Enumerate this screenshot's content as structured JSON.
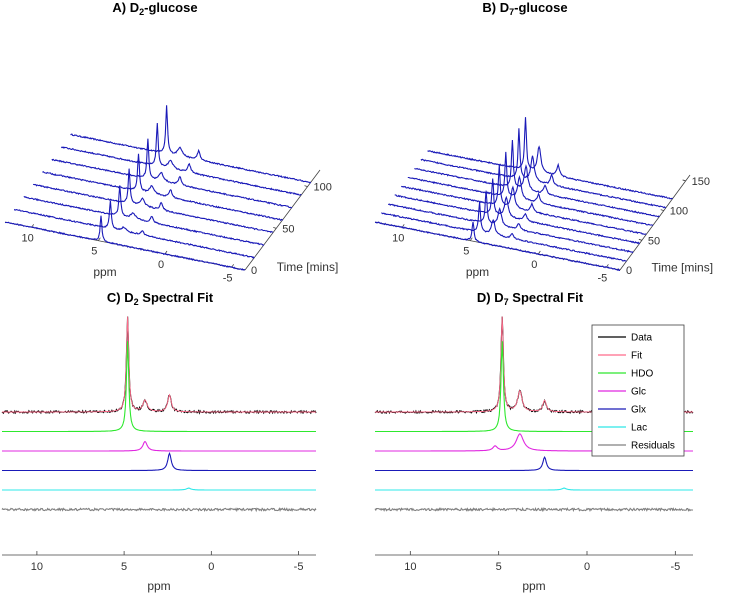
{
  "colors": {
    "waterfall": "#1a1ab8",
    "axis": "#404040",
    "data": "#000000",
    "fit": "#ff6b8a",
    "hdo": "#2ee82e",
    "glc": "#e028e0",
    "glx": "#1a1ab8",
    "lac": "#2ee8e8",
    "residuals": "#808080"
  },
  "chart_data": [
    {
      "type": "line",
      "style": "waterfall",
      "title": "A) D2-glucose",
      "title_main": "A) D",
      "title_sub": "2",
      "title_rest": "-glucose",
      "xlabel": "ppm",
      "ylabel": "Time [mins]",
      "x_ticks": [
        "10",
        "5",
        "0",
        "-5"
      ],
      "x_tick_values": [
        10,
        5,
        0,
        -5
      ],
      "xlim": [
        12,
        -6
      ],
      "y_ticks": [
        "0",
        "50",
        "100"
      ],
      "y_tick_values": [
        0,
        50,
        100
      ],
      "ylim": [
        0,
        120
      ],
      "series": [
        {
          "time": 0,
          "peaks": [
            {
              "ppm": 4.8,
              "height": 0.5,
              "width": 0.08
            }
          ]
        },
        {
          "time": 15,
          "peaks": [
            {
              "ppm": 4.8,
              "height": 0.55,
              "width": 0.08
            },
            {
              "ppm": 3.8,
              "height": 0.08,
              "width": 0.2
            },
            {
              "ppm": 2.4,
              "height": 0.09,
              "width": 0.12
            }
          ]
        },
        {
          "time": 30,
          "peaks": [
            {
              "ppm": 4.8,
              "height": 0.62,
              "width": 0.08
            },
            {
              "ppm": 3.8,
              "height": 0.12,
              "width": 0.2
            },
            {
              "ppm": 2.4,
              "height": 0.12,
              "width": 0.12
            }
          ]
        },
        {
          "time": 45,
          "peaks": [
            {
              "ppm": 4.8,
              "height": 0.7,
              "width": 0.08
            },
            {
              "ppm": 3.8,
              "height": 0.15,
              "width": 0.2
            },
            {
              "ppm": 2.4,
              "height": 0.15,
              "width": 0.12
            }
          ]
        },
        {
          "time": 60,
          "peaks": [
            {
              "ppm": 4.8,
              "height": 0.75,
              "width": 0.08
            },
            {
              "ppm": 3.8,
              "height": 0.16,
              "width": 0.2
            },
            {
              "ppm": 2.4,
              "height": 0.16,
              "width": 0.12
            }
          ]
        },
        {
          "time": 75,
          "peaks": [
            {
              "ppm": 4.8,
              "height": 0.8,
              "width": 0.08
            },
            {
              "ppm": 3.8,
              "height": 0.17,
              "width": 0.2
            },
            {
              "ppm": 2.4,
              "height": 0.17,
              "width": 0.12
            }
          ]
        },
        {
          "time": 90,
          "peaks": [
            {
              "ppm": 4.8,
              "height": 0.86,
              "width": 0.08
            },
            {
              "ppm": 3.8,
              "height": 0.17,
              "width": 0.2
            },
            {
              "ppm": 2.4,
              "height": 0.17,
              "width": 0.12
            }
          ]
        },
        {
          "time": 105,
          "peaks": [
            {
              "ppm": 4.8,
              "height": 0.95,
              "width": 0.08
            },
            {
              "ppm": 3.8,
              "height": 0.18,
              "width": 0.2
            },
            {
              "ppm": 2.4,
              "height": 0.18,
              "width": 0.12
            }
          ]
        }
      ]
    },
    {
      "type": "line",
      "style": "waterfall",
      "title": "B) D7-glucose",
      "title_main": "B) D",
      "title_sub": "7",
      "title_rest": "-glucose",
      "xlabel": "ppm",
      "ylabel": "Time [mins]",
      "x_ticks": [
        "10",
        "5",
        "0",
        "-5"
      ],
      "x_tick_values": [
        10,
        5,
        0,
        -5
      ],
      "xlim": [
        12,
        -6
      ],
      "y_ticks": [
        "0",
        "50",
        "100",
        "150"
      ],
      "y_tick_values": [
        0,
        50,
        100,
        150
      ],
      "ylim": [
        0,
        160
      ],
      "series": [
        {
          "time": 0,
          "peaks": [
            {
              "ppm": 4.8,
              "height": 0.4,
              "width": 0.08
            }
          ]
        },
        {
          "time": 15,
          "peaks": [
            {
              "ppm": 4.8,
              "height": 0.6,
              "width": 0.08
            },
            {
              "ppm": 3.8,
              "height": 0.3,
              "width": 0.15
            },
            {
              "ppm": 2.4,
              "height": 0.1,
              "width": 0.12
            }
          ]
        },
        {
          "time": 30,
          "peaks": [
            {
              "ppm": 4.8,
              "height": 0.65,
              "width": 0.08
            },
            {
              "ppm": 3.8,
              "height": 0.35,
              "width": 0.15
            },
            {
              "ppm": 2.4,
              "height": 0.12,
              "width": 0.12
            }
          ]
        },
        {
          "time": 45,
          "peaks": [
            {
              "ppm": 4.8,
              "height": 0.72,
              "width": 0.08
            },
            {
              "ppm": 3.8,
              "height": 0.4,
              "width": 0.15
            },
            {
              "ppm": 2.4,
              "height": 0.14,
              "width": 0.12
            }
          ]
        },
        {
          "time": 60,
          "peaks": [
            {
              "ppm": 4.8,
              "height": 0.8,
              "width": 0.08
            },
            {
              "ppm": 3.8,
              "height": 0.42,
              "width": 0.15
            },
            {
              "ppm": 2.4,
              "height": 0.16,
              "width": 0.12
            }
          ]
        },
        {
          "time": 75,
          "peaks": [
            {
              "ppm": 4.8,
              "height": 0.88,
              "width": 0.08
            },
            {
              "ppm": 3.8,
              "height": 0.45,
              "width": 0.15
            },
            {
              "ppm": 2.4,
              "height": 0.17,
              "width": 0.12
            }
          ]
        },
        {
          "time": 90,
          "peaks": [
            {
              "ppm": 4.8,
              "height": 0.95,
              "width": 0.08
            },
            {
              "ppm": 3.8,
              "height": 0.48,
              "width": 0.15
            },
            {
              "ppm": 2.4,
              "height": 0.18,
              "width": 0.12
            }
          ]
        },
        {
          "time": 105,
          "peaks": [
            {
              "ppm": 4.8,
              "height": 1.0,
              "width": 0.08
            },
            {
              "ppm": 3.8,
              "height": 0.5,
              "width": 0.15
            },
            {
              "ppm": 2.4,
              "height": 0.2,
              "width": 0.12
            }
          ]
        },
        {
          "time": 120,
          "peaks": [
            {
              "ppm": 4.8,
              "height": 1.05,
              "width": 0.08
            },
            {
              "ppm": 3.8,
              "height": 0.52,
              "width": 0.15
            },
            {
              "ppm": 2.4,
              "height": 0.22,
              "width": 0.12
            }
          ]
        }
      ]
    },
    {
      "type": "line",
      "style": "stacked-fit",
      "title": "C) D2 Spectral Fit",
      "title_main": "C) D",
      "title_sub": "2",
      "title_rest": " Spectral Fit",
      "xlabel": "ppm",
      "x_ticks": [
        "10",
        "5",
        "0",
        "-5"
      ],
      "x_tick_values": [
        10,
        5,
        0,
        -5
      ],
      "xlim": [
        12,
        -6
      ],
      "series": [
        {
          "name": "Data",
          "color_key": "data",
          "offset": 0,
          "noise": 0.012,
          "peaks": [
            {
              "ppm": 4.8,
              "height": 1.0,
              "width": 0.08
            },
            {
              "ppm": 3.8,
              "height": 0.12,
              "width": 0.15
            },
            {
              "ppm": 2.4,
              "height": 0.18,
              "width": 0.12
            }
          ]
        },
        {
          "name": "Fit",
          "color_key": "fit",
          "offset": 0,
          "noise": 0,
          "peaks": [
            {
              "ppm": 4.8,
              "height": 1.0,
              "width": 0.08
            },
            {
              "ppm": 3.8,
              "height": 0.12,
              "width": 0.15
            },
            {
              "ppm": 2.4,
              "height": 0.18,
              "width": 0.12
            }
          ]
        },
        {
          "name": "HDO",
          "color_key": "hdo",
          "offset": 1,
          "noise": 0,
          "peaks": [
            {
              "ppm": 4.8,
              "height": 0.95,
              "width": 0.08
            }
          ]
        },
        {
          "name": "Glc",
          "color_key": "glc",
          "offset": 2,
          "noise": 0,
          "peaks": [
            {
              "ppm": 3.8,
              "height": 0.1,
              "width": 0.15
            }
          ]
        },
        {
          "name": "Glx",
          "color_key": "glx",
          "offset": 3,
          "noise": 0,
          "peaks": [
            {
              "ppm": 2.4,
              "height": 0.18,
              "width": 0.12
            }
          ]
        },
        {
          "name": "Lac",
          "color_key": "lac",
          "offset": 4,
          "noise": 0,
          "peaks": [
            {
              "ppm": 1.3,
              "height": 0.02,
              "width": 0.15
            }
          ]
        },
        {
          "name": "Residuals",
          "color_key": "residuals",
          "offset": 5,
          "noise": 0.012,
          "peaks": []
        }
      ]
    },
    {
      "type": "line",
      "style": "stacked-fit",
      "title": "D) D7 Spectral Fit",
      "title_main": "D) D",
      "title_sub": "7",
      "title_rest": " Spectral Fit",
      "xlabel": "ppm",
      "x_ticks": [
        "10",
        "5",
        "0",
        "-5"
      ],
      "x_tick_values": [
        10,
        5,
        0,
        -5
      ],
      "xlim": [
        12,
        -6
      ],
      "legend": {
        "placement": "top-right",
        "entries": [
          "Data",
          "Fit",
          "HDO",
          "Glc",
          "Glx",
          "Lac",
          "Residuals"
        ]
      },
      "series": [
        {
          "name": "Data",
          "color_key": "data",
          "offset": 0,
          "noise": 0.012,
          "peaks": [
            {
              "ppm": 4.8,
              "height": 1.0,
              "width": 0.08
            },
            {
              "ppm": 3.8,
              "height": 0.22,
              "width": 0.15
            },
            {
              "ppm": 2.4,
              "height": 0.12,
              "width": 0.12
            }
          ]
        },
        {
          "name": "Fit",
          "color_key": "fit",
          "offset": 0,
          "noise": 0,
          "peaks": [
            {
              "ppm": 4.8,
              "height": 1.0,
              "width": 0.08
            },
            {
              "ppm": 3.8,
              "height": 0.22,
              "width": 0.15
            },
            {
              "ppm": 2.4,
              "height": 0.12,
              "width": 0.12
            }
          ]
        },
        {
          "name": "HDO",
          "color_key": "hdo",
          "offset": 1,
          "noise": 0,
          "peaks": [
            {
              "ppm": 4.8,
              "height": 0.95,
              "width": 0.08
            }
          ]
        },
        {
          "name": "Glc",
          "color_key": "glc",
          "offset": 2,
          "noise": 0,
          "peaks": [
            {
              "ppm": 3.8,
              "height": 0.18,
              "width": 0.25
            },
            {
              "ppm": 5.2,
              "height": 0.05,
              "width": 0.15
            }
          ]
        },
        {
          "name": "Glx",
          "color_key": "glx",
          "offset": 3,
          "noise": 0,
          "peaks": [
            {
              "ppm": 2.4,
              "height": 0.14,
              "width": 0.12
            }
          ]
        },
        {
          "name": "Lac",
          "color_key": "lac",
          "offset": 4,
          "noise": 0,
          "peaks": [
            {
              "ppm": 1.3,
              "height": 0.02,
              "width": 0.15
            }
          ]
        },
        {
          "name": "Residuals",
          "color_key": "residuals",
          "offset": 5,
          "noise": 0.012,
          "peaks": []
        }
      ]
    }
  ]
}
